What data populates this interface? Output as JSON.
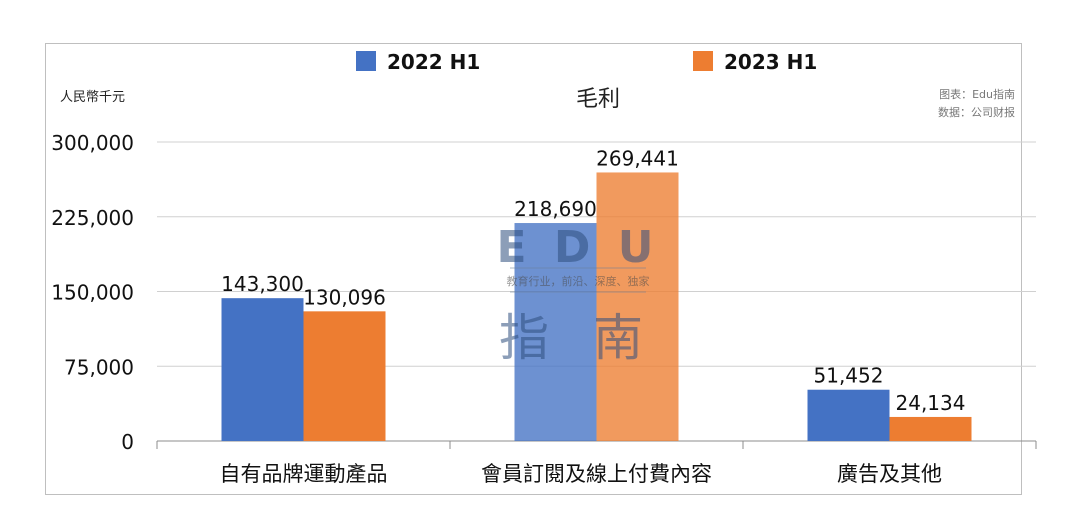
{
  "chart_data": {
    "type": "bar",
    "title": "毛利",
    "unit_label": "人民幣千元",
    "source_lines": [
      "图表：Edu指南",
      "数据：公司财报"
    ],
    "categories": [
      "自有品牌運動產品",
      "會員訂閱及線上付費內容",
      "廣告及其他"
    ],
    "series": [
      {
        "name": "2022 H1",
        "color": "#4472c4",
        "values": [
          143300,
          218690,
          51452
        ]
      },
      {
        "name": "2023 H1",
        "color": "#ed7d31",
        "values": [
          130096,
          269441,
          24134
        ]
      }
    ],
    "ylim": [
      0,
      300000
    ],
    "yticks": [
      0,
      75000,
      150000,
      225000,
      300000
    ],
    "ytick_labels": [
      "0",
      "75,000",
      "150,000",
      "225,000",
      "300,000"
    ],
    "value_labels": [
      [
        "143,300",
        "218,690",
        "51,452"
      ],
      [
        "130,096",
        "269,441",
        "24,134"
      ]
    ],
    "grid": true,
    "legend_position": "top"
  },
  "watermark": {
    "big_text": "E D U",
    "tagline": "教育行业，前沿、深度、独家",
    "chars": "指 南"
  }
}
